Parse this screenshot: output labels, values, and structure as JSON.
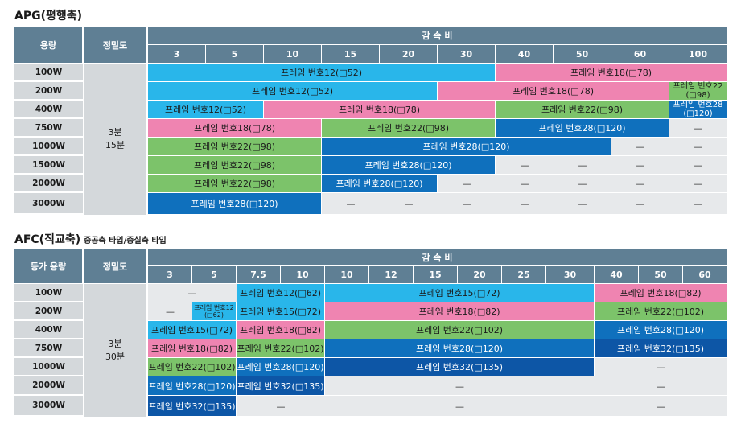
{
  "colors": {
    "header": "#5f7f94",
    "row_header": "#d4d8db",
    "cyan": "#29b6ea",
    "pink": "#ef84b1",
    "green": "#7cc36a",
    "blue": "#0f70bd",
    "navy": "#0d56a6"
  },
  "apg": {
    "title": "APG(평행축)",
    "h_capacity": "용량",
    "h_accuracy": "정밀도",
    "h_ratio": "감  속  비",
    "ratios": [
      "3",
      "5",
      "10",
      "15",
      "20",
      "30",
      "40",
      "50",
      "60",
      "100"
    ],
    "rows": [
      "100W",
      "200W",
      "400W",
      "750W",
      "1000W",
      "1500W",
      "2000W",
      "3000W"
    ],
    "accuracy": [
      "3분",
      "15분"
    ],
    "dash": "—",
    "segs": [
      {
        "r": 0,
        "s": 0,
        "e": 6,
        "c": "cyan",
        "t": "프레임 번호12(□52)"
      },
      {
        "r": 0,
        "s": 6,
        "e": 10,
        "c": "pink",
        "t": "프레임 번호18(□78)"
      },
      {
        "r": 1,
        "s": 0,
        "e": 5,
        "c": "cyan",
        "t": "프레임 번호12(□52)"
      },
      {
        "r": 1,
        "s": 5,
        "e": 9,
        "c": "pink",
        "t": "프레임 번호18(□78)"
      },
      {
        "r": 1,
        "s": 9,
        "e": 10,
        "c": "green",
        "t": "프레임 번호22 (□98)",
        "f": "small"
      },
      {
        "r": 2,
        "s": 0,
        "e": 2,
        "c": "cyan",
        "t": "프레임 번호12(□52)"
      },
      {
        "r": 2,
        "s": 2,
        "e": 6,
        "c": "pink",
        "t": "프레임 번호18(□78)"
      },
      {
        "r": 2,
        "s": 6,
        "e": 9,
        "c": "green",
        "t": "프레임 번호22(□98)"
      },
      {
        "r": 2,
        "s": 9,
        "e": 10,
        "c": "blue",
        "t": "프레임 번호28 (□120)",
        "f": "small"
      },
      {
        "r": 3,
        "s": 0,
        "e": 3,
        "c": "pink",
        "t": "프레임 번호18(□78)"
      },
      {
        "r": 3,
        "s": 3,
        "e": 6,
        "c": "green",
        "t": "프레임 번호22(□98)"
      },
      {
        "r": 3,
        "s": 6,
        "e": 9,
        "c": "blue",
        "t": "프레임 번호28(□120)"
      },
      {
        "r": 4,
        "s": 0,
        "e": 3,
        "c": "green",
        "t": "프레임 번호22(□98)"
      },
      {
        "r": 4,
        "s": 3,
        "e": 8,
        "c": "blue",
        "t": "프레임 번호28(□120)"
      },
      {
        "r": 5,
        "s": 0,
        "e": 3,
        "c": "green",
        "t": "프레임 번호22(□98)"
      },
      {
        "r": 5,
        "s": 3,
        "e": 6,
        "c": "blue",
        "t": "프레임 번호28(□120)"
      },
      {
        "r": 6,
        "s": 0,
        "e": 3,
        "c": "green",
        "t": "프레임 번호22(□98)"
      },
      {
        "r": 6,
        "s": 3,
        "e": 5,
        "c": "blue",
        "t": "프레임 번호28(□120)"
      },
      {
        "r": 7,
        "s": 0,
        "e": 3,
        "c": "blue",
        "t": "프레임 번호28(□120)"
      }
    ],
    "dashes": [
      {
        "r": 3,
        "s": 9,
        "e": 10
      },
      {
        "r": 4,
        "s": 8,
        "e": 9
      },
      {
        "r": 4,
        "s": 9,
        "e": 10
      },
      {
        "r": 5,
        "s": 6,
        "e": 7
      },
      {
        "r": 5,
        "s": 7,
        "e": 8
      },
      {
        "r": 5,
        "s": 8,
        "e": 9
      },
      {
        "r": 5,
        "s": 9,
        "e": 10
      },
      {
        "r": 6,
        "s": 5,
        "e": 6
      },
      {
        "r": 6,
        "s": 6,
        "e": 7
      },
      {
        "r": 6,
        "s": 7,
        "e": 8
      },
      {
        "r": 6,
        "s": 8,
        "e": 9
      },
      {
        "r": 6,
        "s": 9,
        "e": 10
      },
      {
        "r": 7,
        "s": 3,
        "e": 4
      },
      {
        "r": 7,
        "s": 4,
        "e": 5
      },
      {
        "r": 7,
        "s": 5,
        "e": 6
      },
      {
        "r": 7,
        "s": 6,
        "e": 7
      },
      {
        "r": 7,
        "s": 7,
        "e": 8
      },
      {
        "r": 7,
        "s": 8,
        "e": 9
      },
      {
        "r": 7,
        "s": 9,
        "e": 10
      }
    ]
  },
  "afc": {
    "title": "AFC(직교축)",
    "subtitle": "중공축 타입/중실축 타입",
    "h_capacity": "등가 용량",
    "h_accuracy": "정밀도",
    "h_ratio": "감  속  비",
    "ratios": [
      "3",
      "5",
      "7.5",
      "10",
      "10",
      "12",
      "15",
      "20",
      "25",
      "30",
      "40",
      "50",
      "60"
    ],
    "rows": [
      "100W",
      "200W",
      "400W",
      "750W",
      "1000W",
      "2000W",
      "3000W"
    ],
    "accuracy": [
      "3분",
      "30분"
    ],
    "dash": "—",
    "segs": [
      {
        "r": 0,
        "s": 2,
        "e": 4,
        "c": "cyan",
        "t": "프레임 번호12(□62)"
      },
      {
        "r": 0,
        "s": 4,
        "e": 10,
        "c": "cyan",
        "t": "프레임 번호15(□72)"
      },
      {
        "r": 0,
        "s": 10,
        "e": 13,
        "c": "pink",
        "t": "프레임 번호18(□82)"
      },
      {
        "r": 1,
        "s": 1,
        "e": 2,
        "c": "cyan",
        "t": "프레임 번호12 (□62)",
        "f": "tiny"
      },
      {
        "r": 1,
        "s": 2,
        "e": 4,
        "c": "cyan",
        "t": "프레임 번호15(□72)"
      },
      {
        "r": 1,
        "s": 4,
        "e": 10,
        "c": "pink",
        "t": "프레임 번호18(□82)"
      },
      {
        "r": 1,
        "s": 10,
        "e": 13,
        "c": "green",
        "t": "프레임 번호22(□102)"
      },
      {
        "r": 2,
        "s": 0,
        "e": 2,
        "c": "cyan",
        "t": "프레임 번호15(□72)"
      },
      {
        "r": 2,
        "s": 2,
        "e": 4,
        "c": "pink",
        "t": "프레임 번호18(□82)"
      },
      {
        "r": 2,
        "s": 4,
        "e": 10,
        "c": "green",
        "t": "프레임 번호22(□102)"
      },
      {
        "r": 2,
        "s": 10,
        "e": 13,
        "c": "blue",
        "t": "프레임 번호28(□120)"
      },
      {
        "r": 3,
        "s": 0,
        "e": 2,
        "c": "pink",
        "t": "프레임 번호18(□82)"
      },
      {
        "r": 3,
        "s": 2,
        "e": 4,
        "c": "green",
        "t": "프레임 번호22(□102)"
      },
      {
        "r": 3,
        "s": 4,
        "e": 10,
        "c": "blue",
        "t": "프레임 번호28(□120)"
      },
      {
        "r": 3,
        "s": 10,
        "e": 13,
        "c": "navy",
        "t": "프레임 번호32(□135)"
      },
      {
        "r": 4,
        "s": 0,
        "e": 2,
        "c": "green",
        "t": "프레임 번호22(□102)"
      },
      {
        "r": 4,
        "s": 2,
        "e": 4,
        "c": "blue",
        "t": "프레임 번호28(□120)"
      },
      {
        "r": 4,
        "s": 4,
        "e": 10,
        "c": "navy",
        "t": "프레임 번호32(□135)"
      },
      {
        "r": 5,
        "s": 0,
        "e": 2,
        "c": "blue",
        "t": "프레임 번호28(□120)"
      },
      {
        "r": 5,
        "s": 2,
        "e": 4,
        "c": "navy",
        "t": "프레임 번호32(□135)"
      },
      {
        "r": 6,
        "s": 0,
        "e": 2,
        "c": "navy",
        "t": "프레임 번호32(□135)"
      }
    ],
    "dashes": [
      {
        "r": 0,
        "s": 0,
        "e": 2
      },
      {
        "r": 1,
        "s": 0,
        "e": 1
      },
      {
        "r": 4,
        "s": 10,
        "e": 13
      },
      {
        "r": 5,
        "s": 4,
        "e": 10
      },
      {
        "r": 5,
        "s": 10,
        "e": 13
      },
      {
        "r": 6,
        "s": 2,
        "e": 4
      },
      {
        "r": 6,
        "s": 4,
        "e": 10
      },
      {
        "r": 6,
        "s": 10,
        "e": 13
      }
    ]
  }
}
